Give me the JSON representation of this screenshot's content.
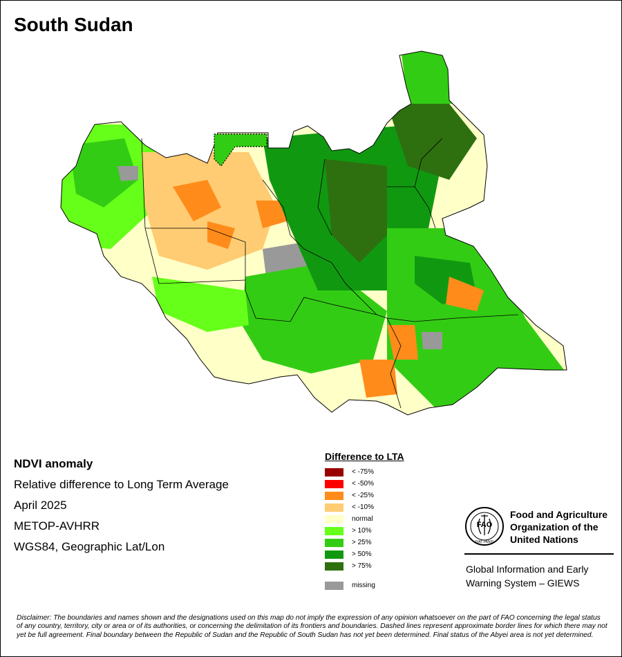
{
  "title": "South Sudan",
  "info": {
    "product": "NDVI anomaly",
    "description": "Relative difference to Long Term Average",
    "period": "April 2025",
    "sensor": "METOP-AVHRR",
    "projection": "WGS84, Geographic Lat/Lon"
  },
  "legend": {
    "title": "Difference to LTA",
    "classes": [
      {
        "label": "< -75%",
        "color": "#990000"
      },
      {
        "label": "< -50%",
        "color": "#ff0000"
      },
      {
        "label": "< -25%",
        "color": "#ff8c1a"
      },
      {
        "label": "< -10%",
        "color": "#ffcc73"
      },
      {
        "label": "normal",
        "color": "#ffffc8"
      },
      {
        "label": "> 10%",
        "color": "#66ff1a"
      },
      {
        "label": "> 25%",
        "color": "#33cc14"
      },
      {
        "label": "> 50%",
        "color": "#109910"
      },
      {
        "label": "> 75%",
        "color": "#2e7010"
      }
    ],
    "missing": {
      "label": "missing",
      "color": "#999999"
    }
  },
  "org": {
    "name_lines": [
      "Food and Agriculture",
      "Organization of the",
      "United Nations"
    ],
    "logo_text": "FAO",
    "motto": "FIAT PANIS",
    "giews_lines": [
      "Global Information and Early",
      "Warning System – GIEWS"
    ]
  },
  "disclaimer": "Disclaimer: The boundaries and names shown and the designations used on this map do not imply the expression of any opinion whatsoever on the part of FAO concerning the legal status of any country, territory, city or area or of its authorities, or concerning the delimitation of its frontiers and boundaries. Dashed lines represent approximate border lines for which there may not yet be full agreement.  Final boundary between the Republic of Sudan and the Republic of South Sudan has not yet been determined. Final status of the Abyei area is not yet determined."
}
